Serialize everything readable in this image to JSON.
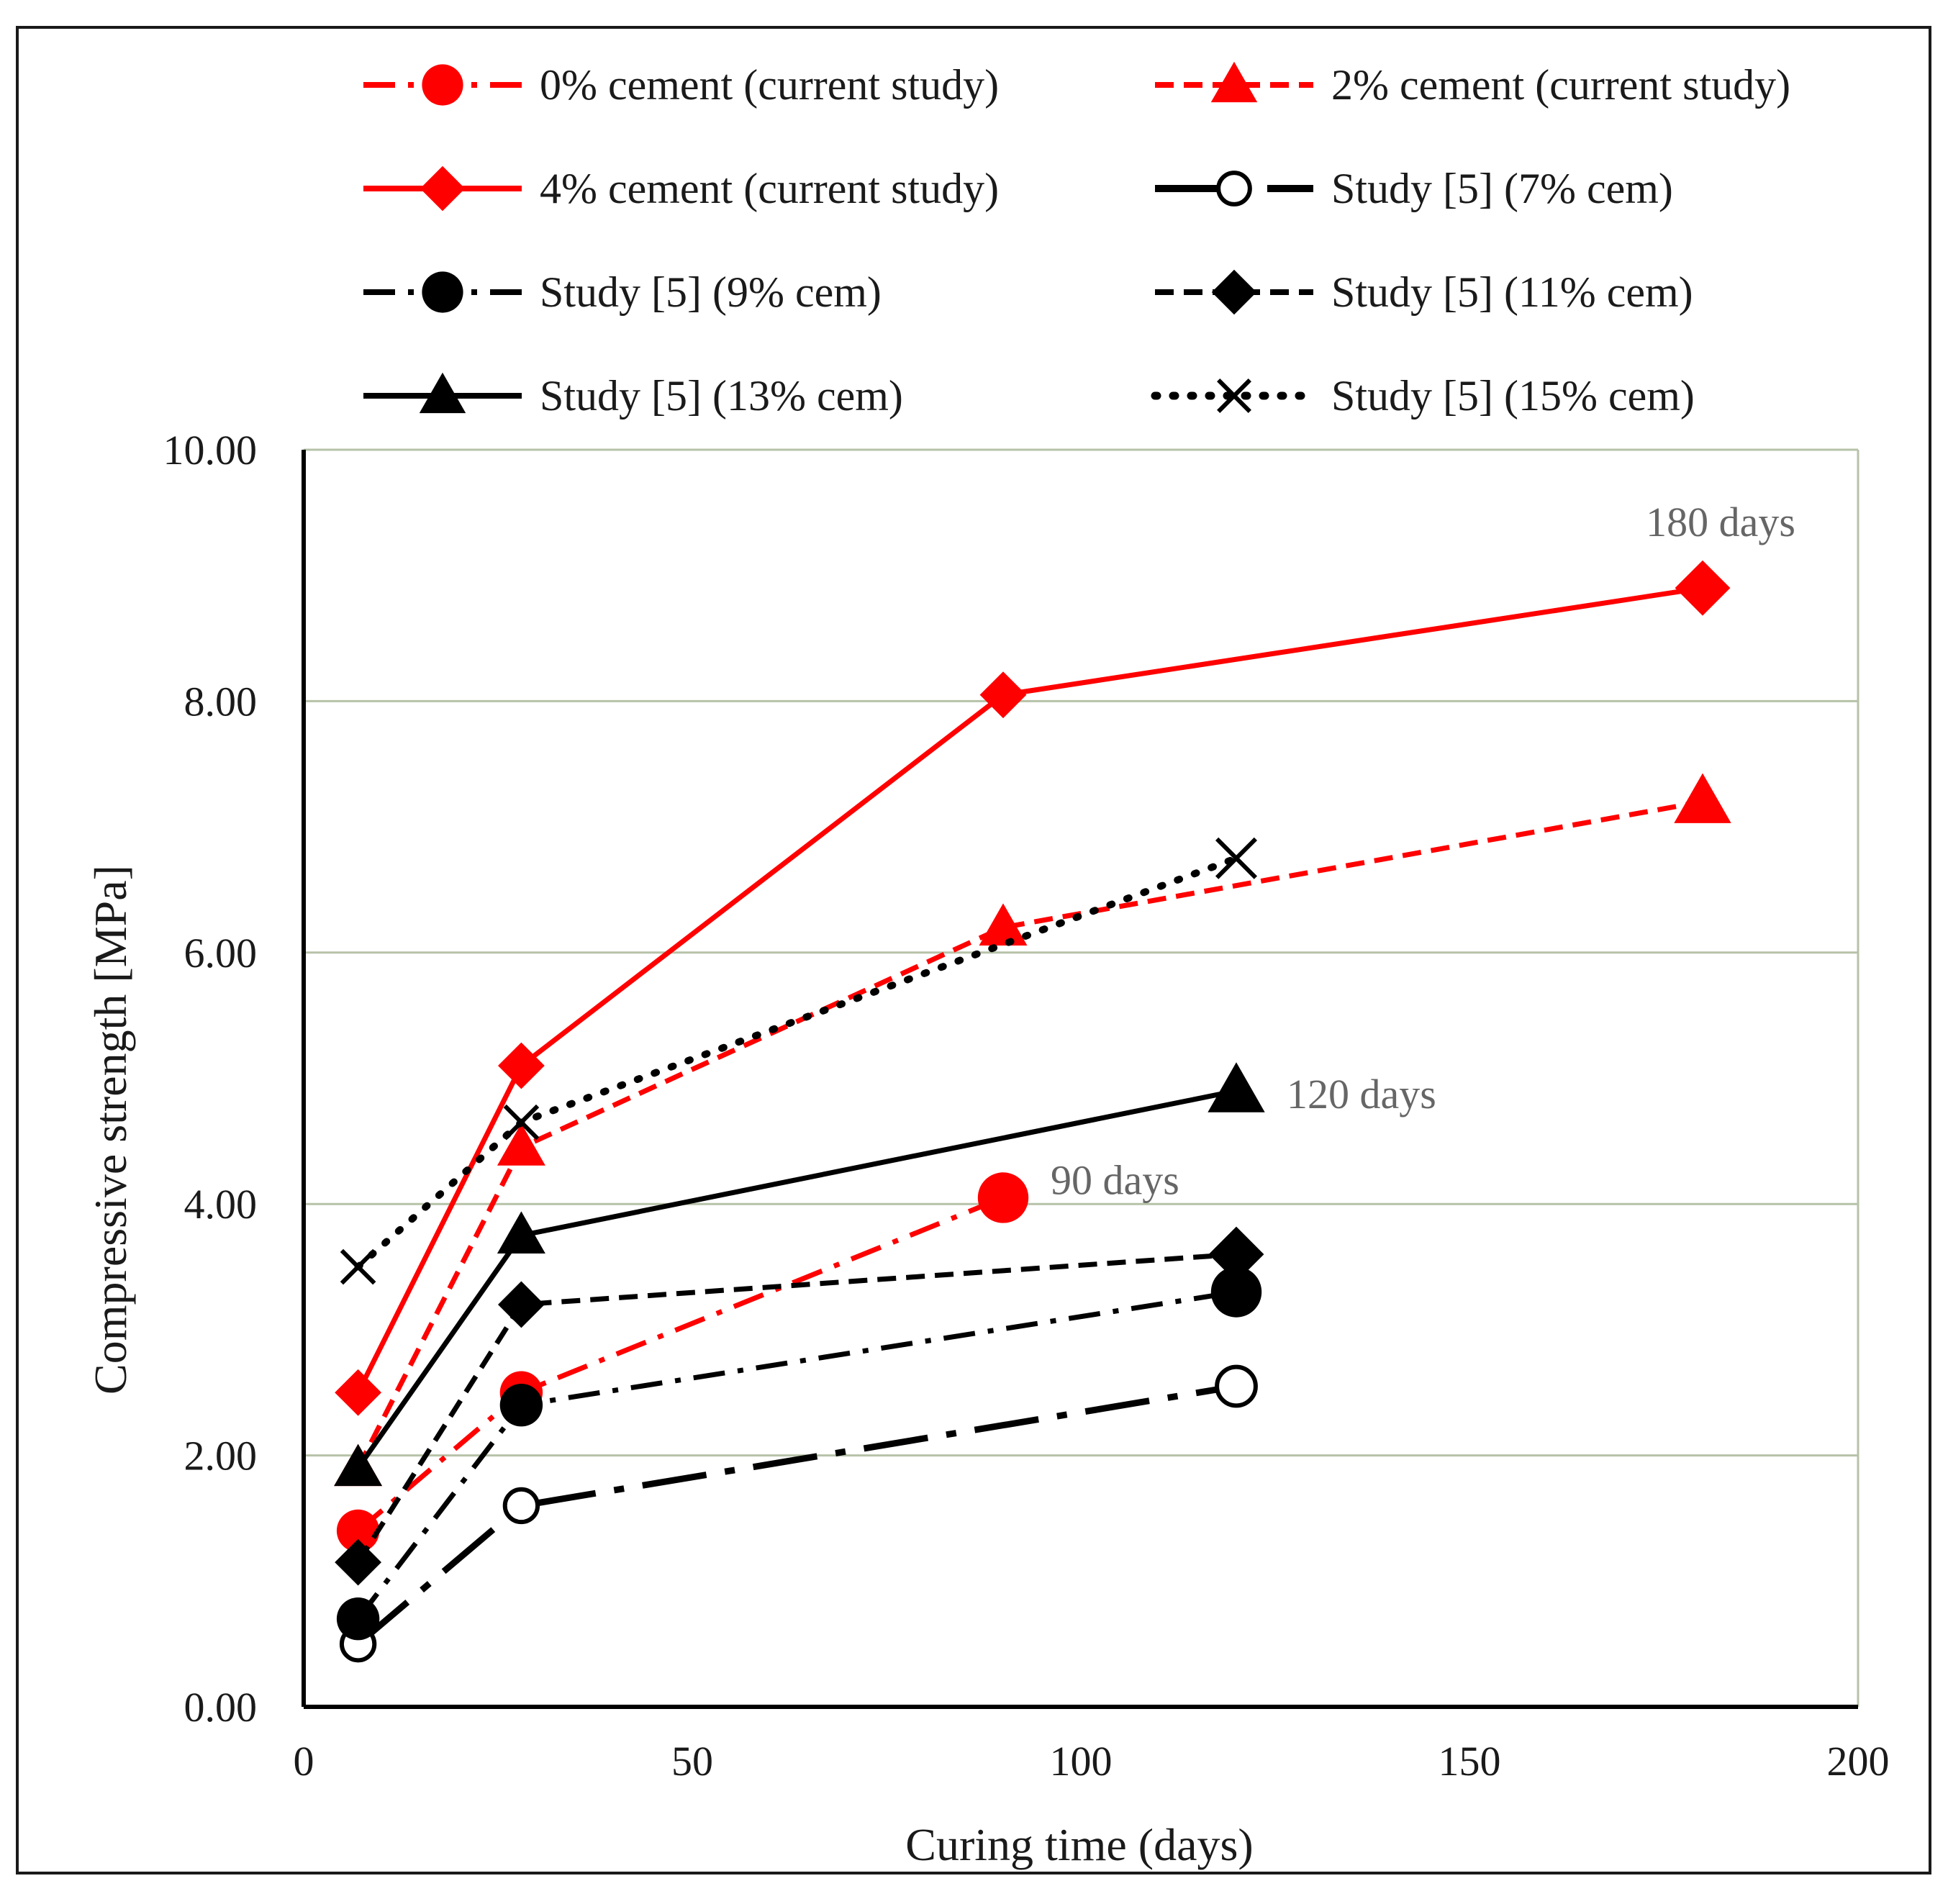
{
  "chart_data": {
    "type": "line",
    "xlabel": "Curing time (days)",
    "ylabel": "Compressive strength [MPa]",
    "xlim": [
      0,
      200
    ],
    "ylim": [
      0,
      10
    ],
    "x_ticks": [
      "0",
      "50",
      "100",
      "150",
      "200"
    ],
    "x_tick_values": [
      0,
      50,
      100,
      150,
      200
    ],
    "y_ticks": [
      "0.00",
      "2.00",
      "4.00",
      "6.00",
      "8.00",
      "10.00"
    ],
    "y_tick_values": [
      0,
      2,
      4,
      6,
      8,
      10
    ],
    "grid": "horizontal",
    "legend_position": "top",
    "series": [
      {
        "name": "0% cement (current study)",
        "color": "#ff0000",
        "marker": "circle",
        "line": "dashdot",
        "x": [
          7,
          28,
          90
        ],
        "y": [
          1.4,
          2.5,
          4.05
        ]
      },
      {
        "name": "2% cement (current study)",
        "color": "#ff0000",
        "marker": "triangle",
        "line": "dash",
        "x": [
          7,
          28,
          90,
          180
        ],
        "y": [
          1.9,
          4.45,
          6.2,
          7.2
        ]
      },
      {
        "name": "4% cement (current study)",
        "color": "#ff0000",
        "marker": "diamond",
        "line": "solid",
        "x": [
          7,
          28,
          90,
          180
        ],
        "y": [
          2.5,
          5.1,
          8.05,
          8.9
        ]
      },
      {
        "name": "Study [5] (7% cem)",
        "color": "#000000",
        "marker": "open-circle",
        "line": "longdashdot",
        "x": [
          7,
          28,
          120
        ],
        "y": [
          0.5,
          1.6,
          2.55
        ]
      },
      {
        "name": "Study [5] (9% cem)",
        "color": "#000000",
        "marker": "circle",
        "line": "dashdot",
        "x": [
          7,
          28,
          120
        ],
        "y": [
          0.7,
          2.4,
          3.3
        ]
      },
      {
        "name": "Study [5] (11% cem)",
        "color": "#000000",
        "marker": "diamond",
        "line": "dash",
        "x": [
          7,
          28,
          120
        ],
        "y": [
          1.15,
          3.2,
          3.6
        ]
      },
      {
        "name": "Study [5] (13% cem)",
        "color": "#000000",
        "marker": "triangle",
        "line": "solid",
        "x": [
          7,
          28,
          120
        ],
        "y": [
          1.9,
          3.75,
          4.9
        ]
      },
      {
        "name": "Study [5] (15% cem)",
        "color": "#000000",
        "marker": "x",
        "line": "dot",
        "x": [
          7,
          28,
          120
        ],
        "y": [
          3.5,
          4.65,
          6.75
        ]
      }
    ],
    "annotations": [
      {
        "text": "180 days",
        "x": 180,
        "y": 8.9
      },
      {
        "text": "120 days",
        "x": 120,
        "y": 4.9
      },
      {
        "text": "90 days",
        "x": 90,
        "y": 4.05
      }
    ]
  }
}
